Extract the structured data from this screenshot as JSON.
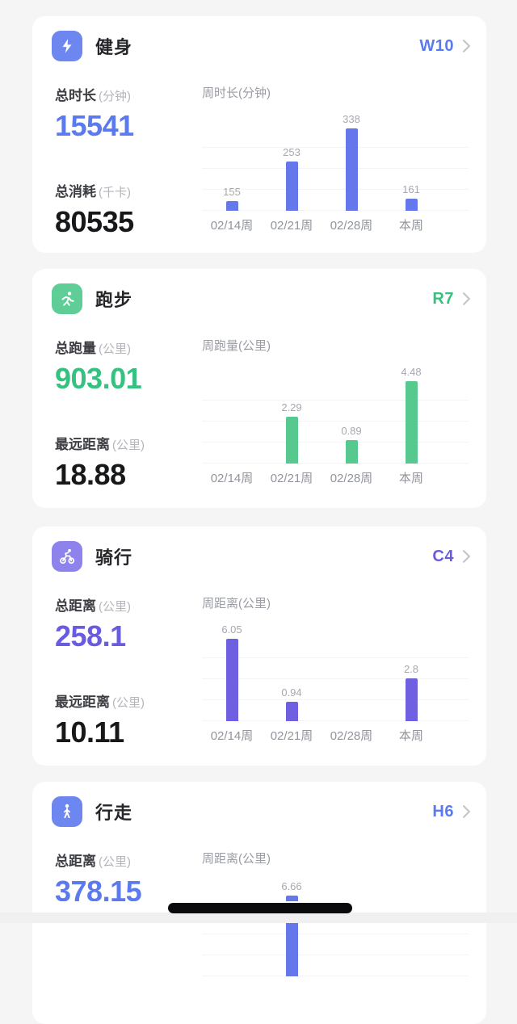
{
  "page": {
    "background": "#f5f5f6"
  },
  "cards": [
    {
      "title": "健身",
      "icon": "lightning-icon",
      "accent": "#5b7af0",
      "icon_bg": "#6e86f0",
      "badge": "W10",
      "stats": [
        {
          "label": "总时长",
          "unit": "(分钟)",
          "value": "15541",
          "color": "#5b7af0"
        },
        {
          "label": "总消耗",
          "unit": "(千卡)",
          "value": "80535",
          "color": "#17181a"
        }
      ],
      "chart_data": {
        "type": "bar",
        "title": "周时长(分钟)",
        "categories": [
          "02/14周",
          "02/21周",
          "02/28周",
          "本周"
        ],
        "values": [
          155,
          253,
          338,
          161
        ],
        "bar_color": "#6478ec",
        "ymin": 131,
        "ymax": 338,
        "grid": true,
        "value_labels": true
      }
    },
    {
      "title": "跑步",
      "icon": "runner-icon",
      "accent": "#35c17f",
      "icon_bg": "#5ecd96",
      "badge": "R7",
      "stats": [
        {
          "label": "总跑量",
          "unit": "(公里)",
          "value": "903.01",
          "color": "#35c17f"
        },
        {
          "label": "最远距离",
          "unit": "(公里)",
          "value": "18.88",
          "color": "#17181a"
        }
      ],
      "chart_data": {
        "type": "bar",
        "title": "周跑量(公里)",
        "categories": [
          "02/14周",
          "02/21周",
          "02/28周",
          "本周"
        ],
        "values": [
          0,
          2.29,
          0.89,
          4.48
        ],
        "bar_color": "#57c88e",
        "ymin": -0.52,
        "ymax": 4.48,
        "grid": true,
        "value_labels": true
      }
    },
    {
      "title": "骑行",
      "icon": "cyclist-icon",
      "accent": "#6a5ce0",
      "icon_bg": "#8e82ec",
      "badge": "C4",
      "stats": [
        {
          "label": "总距离",
          "unit": "(公里)",
          "value": "258.1",
          "color": "#6a5ce0"
        },
        {
          "label": "最远距离",
          "unit": "(公里)",
          "value": "10.11",
          "color": "#17181a"
        }
      ],
      "chart_data": {
        "type": "bar",
        "title": "周距离(公里)",
        "categories": [
          "02/14周",
          "02/21周",
          "02/28周",
          "本周"
        ],
        "values": [
          6.05,
          0.94,
          0,
          2.8
        ],
        "bar_color": "#6f60e2",
        "ymin": -0.61,
        "ymax": 6.05,
        "grid": true,
        "value_labels": true
      }
    },
    {
      "title": "行走",
      "icon": "walker-icon",
      "accent": "#5b7af0",
      "icon_bg": "#6e86f0",
      "badge": "H6",
      "stats": [
        {
          "label": "总距离",
          "unit": "(公里)",
          "value": "378.15",
          "color": "#5b7af0"
        }
      ],
      "chart_data": {
        "type": "bar",
        "title": "周距离(公里)",
        "categories": [
          "",
          "",
          "",
          ""
        ],
        "values": [
          null,
          6.66,
          null,
          null
        ],
        "bar_color": "#6478ec",
        "ymin": -0.4,
        "ymax": 6.9,
        "grid": true,
        "value_labels": true
      }
    }
  ],
  "home_indicator": {
    "present": true,
    "color": "#0a0a0c"
  }
}
